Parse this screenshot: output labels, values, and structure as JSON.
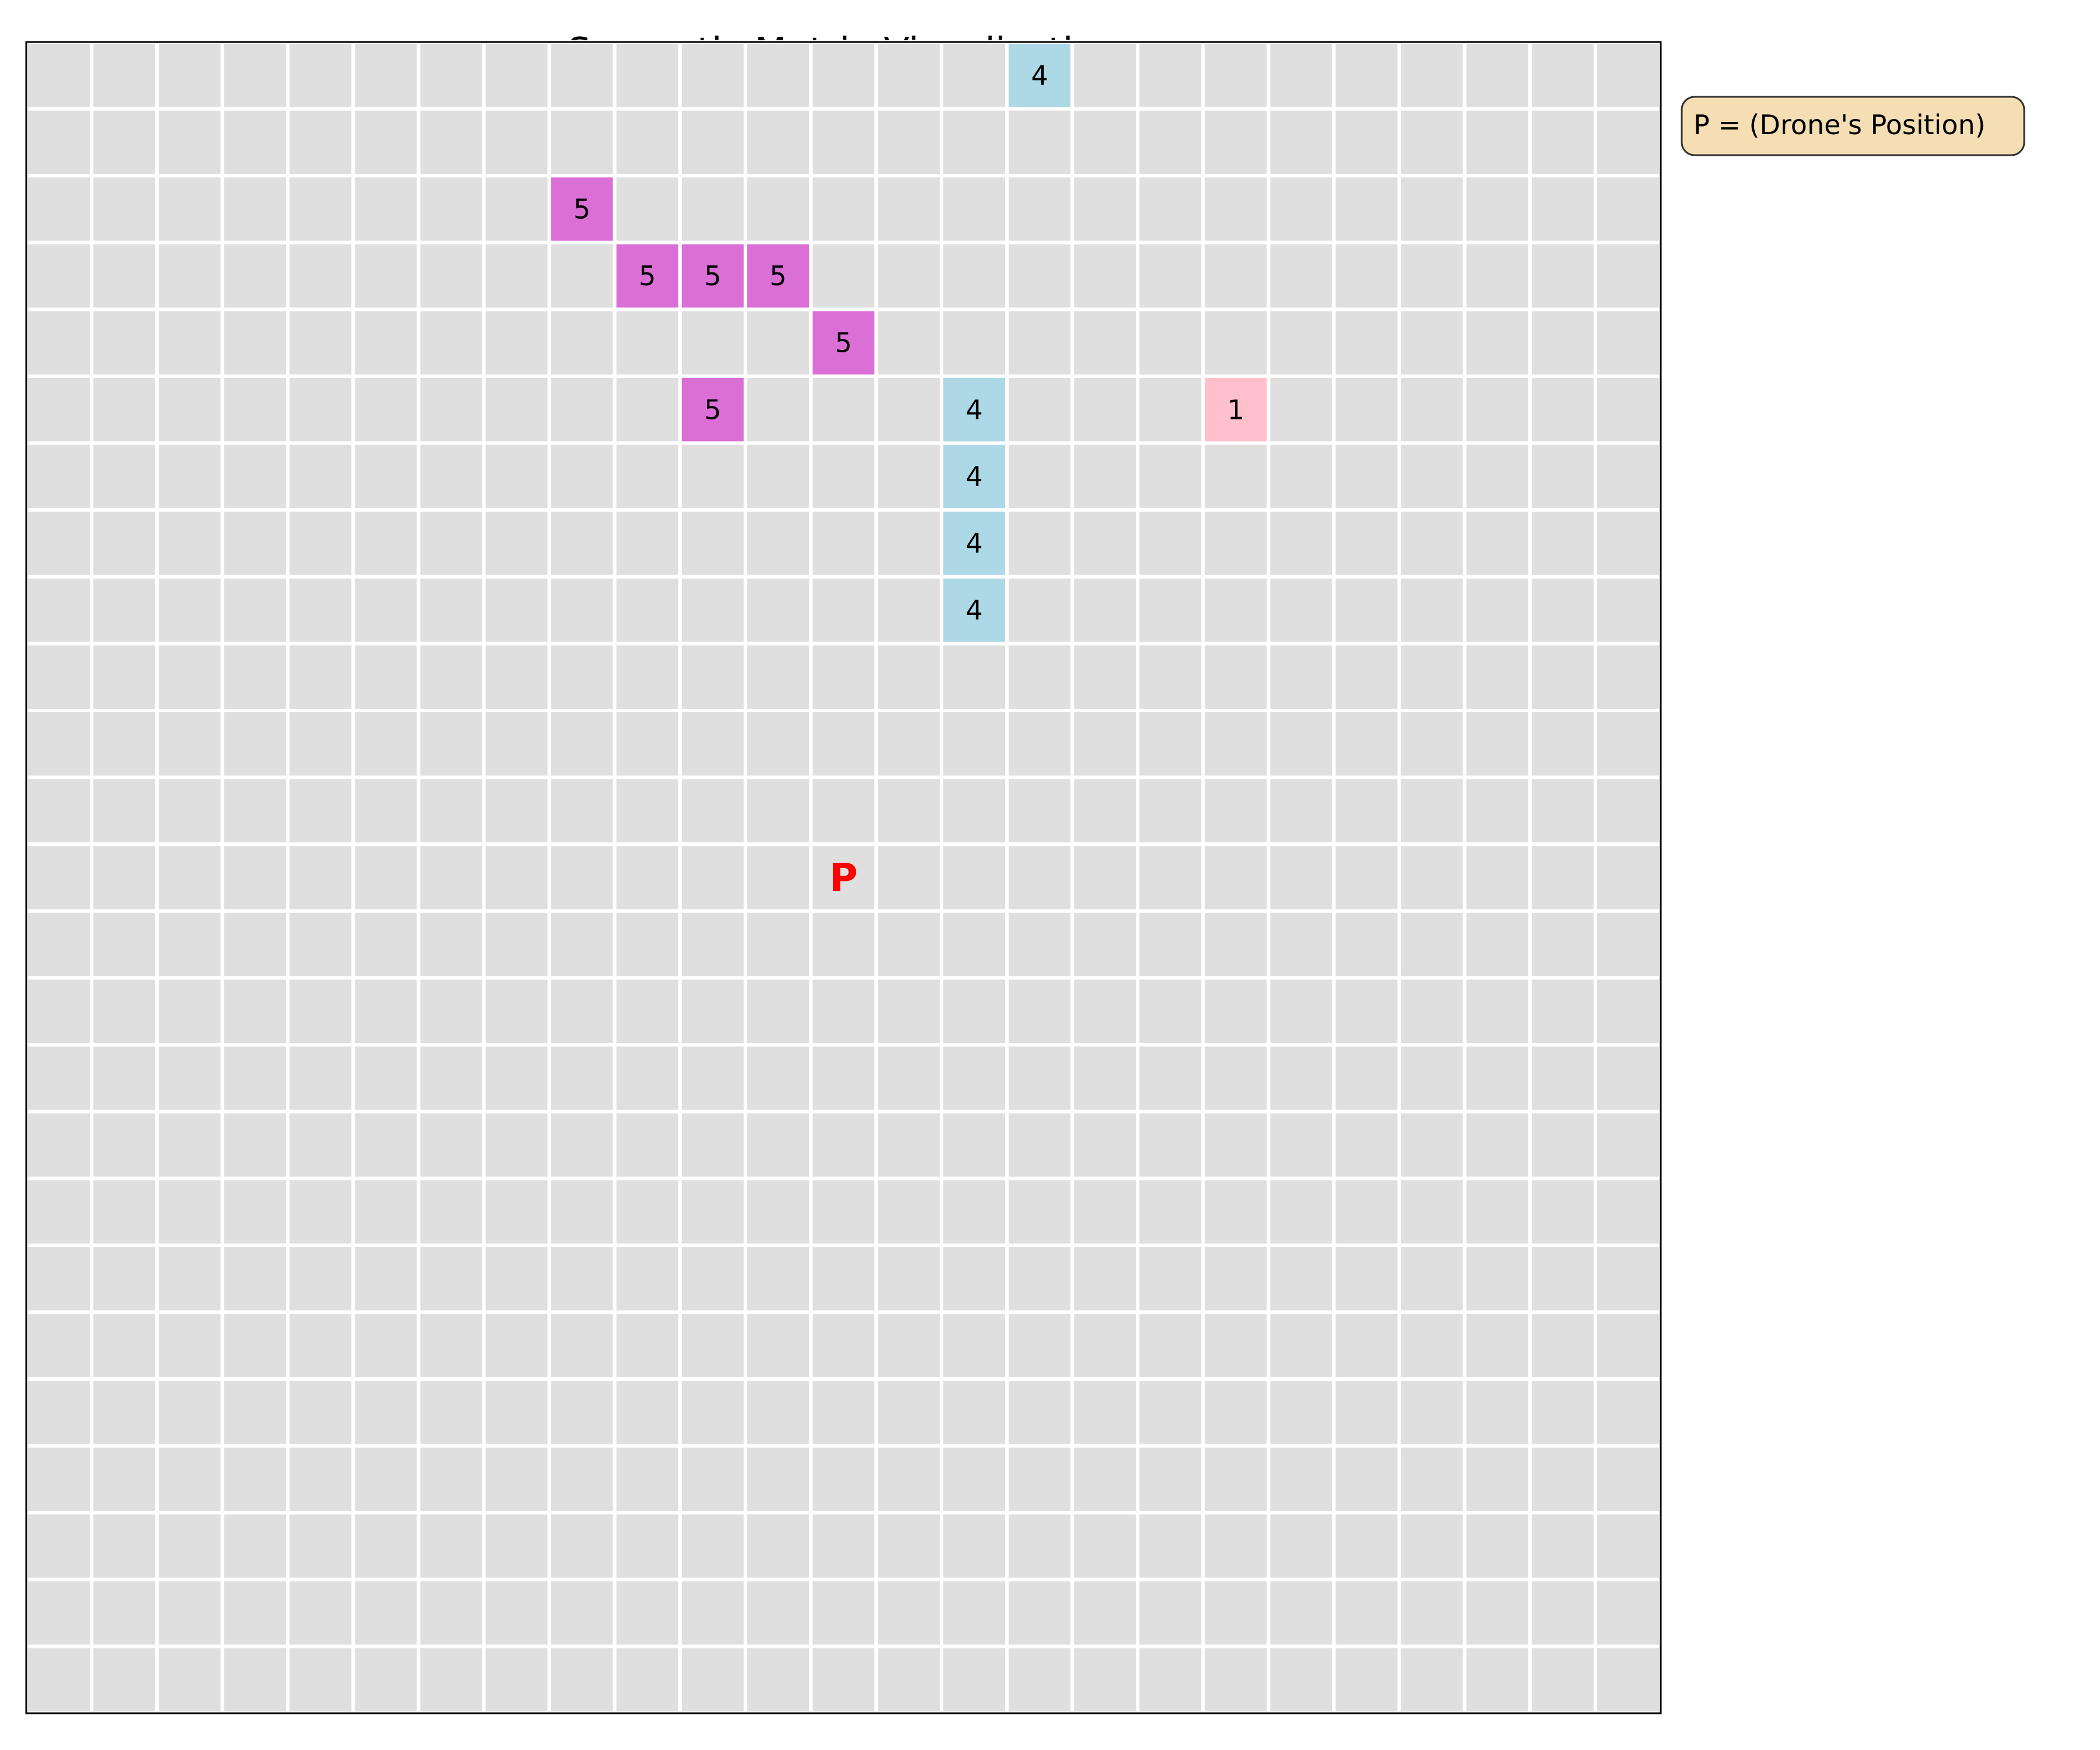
{
  "chart_data": {
    "type": "heatmap",
    "title": "Semantic Matrix Visualization",
    "xlabel": "",
    "ylabel": "",
    "grid": true,
    "rows": 25,
    "cols": 25,
    "default_value": 0,
    "cells": [
      {
        "row": 0,
        "col": 15,
        "value": 4
      },
      {
        "row": 2,
        "col": 8,
        "value": 5
      },
      {
        "row": 3,
        "col": 9,
        "value": 5
      },
      {
        "row": 3,
        "col": 10,
        "value": 5
      },
      {
        "row": 3,
        "col": 11,
        "value": 5
      },
      {
        "row": 4,
        "col": 12,
        "value": 5
      },
      {
        "row": 5,
        "col": 10,
        "value": 5
      },
      {
        "row": 5,
        "col": 14,
        "value": 4
      },
      {
        "row": 5,
        "col": 18,
        "value": 1
      },
      {
        "row": 6,
        "col": 14,
        "value": 4
      },
      {
        "row": 7,
        "col": 14,
        "value": 4
      },
      {
        "row": 8,
        "col": 14,
        "value": 4
      }
    ],
    "colors": {
      "0": "#dfdfdf",
      "1": "#ffc0cb",
      "4": "#add8e6",
      "5": "#da70d6"
    },
    "grid_line_color": "#ffffff",
    "drone": {
      "row": 12,
      "col": 12,
      "marker": "P",
      "color": "#ff0000"
    },
    "legend": {
      "text": "P = (Drone's Position)",
      "placement": "top-right outside",
      "fill": "#f5deb3"
    }
  }
}
